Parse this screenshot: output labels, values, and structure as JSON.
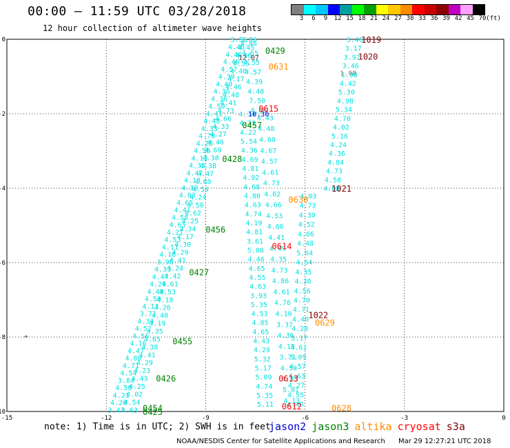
{
  "header": {
    "title": "00:00 — 11:59 UTC 03/28/2018",
    "subtitle": "12 hour collection of altimeter wave heights"
  },
  "legend": {
    "colors": [
      "#808080",
      "#00ffff",
      "#00c8ff",
      "#0000ff",
      "#00a0a0",
      "#00ff00",
      "#00a000",
      "#ffff00",
      "#ffc800",
      "#ff8c00",
      "#ff0000",
      "#c80000",
      "#8b0000",
      "#c000c0",
      "#ffa0ff",
      "#000000"
    ],
    "labels": [
      "3",
      "6",
      "9",
      "12",
      "15",
      "18",
      "21",
      "24",
      "27",
      "30",
      "33",
      "36",
      "39",
      "42",
      "45",
      "70",
      "(ft)"
    ]
  },
  "map": {
    "x_ticks": [
      "-15",
      "-12",
      "-9",
      "-6",
      "-3",
      "0"
    ],
    "y_ticks": [
      "0",
      "-2",
      "-4",
      "-6",
      "-8",
      "-10"
    ],
    "x_range": [
      -15,
      0
    ],
    "y_range": [
      -10,
      0
    ],
    "satellite_colors": {
      "jason2": "#0000c8",
      "jason3": "#008000",
      "altika": "#ff8c00",
      "cryosat": "#ff0000",
      "s3a": "#800000"
    },
    "pass_labels": [
      {
        "text": "1019",
        "sat": "s3a",
        "lon": -4.0,
        "lat": 0.0
      },
      {
        "text": "1020",
        "sat": "s3a",
        "lon": -4.1,
        "lat": -0.45
      },
      {
        "text": "0429",
        "sat": "jason3",
        "lon": -6.9,
        "lat": -0.3
      },
      {
        "text": "0631",
        "sat": "altika",
        "lon": -6.8,
        "lat": -0.72
      },
      {
        "text": "0615",
        "sat": "cryosat",
        "lon": -7.1,
        "lat": -1.85
      },
      {
        "text": "0457",
        "sat": "jason3",
        "lon": -7.6,
        "lat": -2.3
      },
      {
        "text": "0428",
        "sat": "jason3",
        "lon": -8.2,
        "lat": -3.2
      },
      {
        "text": "1021",
        "sat": "s3a",
        "lon": -4.9,
        "lat": -4.0
      },
      {
        "text": "0630",
        "sat": "altika",
        "lon": -6.2,
        "lat": -4.3
      },
      {
        "text": "0456",
        "sat": "jason3",
        "lon": -8.7,
        "lat": -5.1
      },
      {
        "text": "0614",
        "sat": "cryosat",
        "lon": -6.7,
        "lat": -5.55
      },
      {
        "text": "0427",
        "sat": "jason3",
        "lon": -9.2,
        "lat": -6.25
      },
      {
        "text": "1022",
        "sat": "s3a",
        "lon": -5.6,
        "lat": -7.4
      },
      {
        "text": "0629",
        "sat": "altika",
        "lon": -5.4,
        "lat": -7.6
      },
      {
        "text": "0455",
        "sat": "jason3",
        "lon": -9.7,
        "lat": -8.1
      },
      {
        "text": "0426",
        "sat": "jason3",
        "lon": -10.2,
        "lat": -9.1
      },
      {
        "text": "0613",
        "sat": "cryosat",
        "lon": -6.5,
        "lat": -9.1
      },
      {
        "text": "0612",
        "sat": "cryosat",
        "lon": -6.4,
        "lat": -9.85
      },
      {
        "text": "0628",
        "sat": "altika",
        "lon": -4.9,
        "lat": -9.9
      },
      {
        "text": "0454",
        "sat": "jason3",
        "lon": -10.6,
        "lat": -9.9
      },
      {
        "text": "0425",
        "sat": "jason3",
        "lon": -10.6,
        "lat": -10.0
      }
    ],
    "tracks": [
      {
        "name": "track-a",
        "color": "#00e0e0",
        "start": [
          -8.0,
          0.0
        ],
        "end": [
          -11.7,
          -9.95
        ],
        "values": [
          "3.56",
          "4.46",
          "4.46",
          "4.46",
          "4.57",
          "4.39",
          "4.40",
          "4.36",
          "4.36",
          "4.50",
          "4.41",
          "4.48",
          "4.33",
          "4.70",
          "4.28",
          "4.50",
          "4.13",
          "4.33",
          "4.47",
          "4.13",
          "4.32",
          "4.03",
          "4.65",
          "4.41",
          "4.58",
          "4.65",
          "4.21",
          "4.53",
          "4.11",
          "4.18",
          "3.96",
          "4.33",
          "4.47",
          "4.29",
          "4.49",
          "4.50",
          "4.13",
          "3.77",
          "4.34",
          "4.52",
          "4.56",
          "4.16",
          "4.47",
          "4.80",
          "4.71",
          "4.54",
          "3.84",
          "4.58",
          "4.21",
          "4.20",
          "3.47"
        ]
      },
      {
        "name": "track-b",
        "color": "#00e0e0",
        "start": [
          -7.7,
          0.0
        ],
        "end": [
          -11.3,
          -9.95
        ],
        "values": [
          "3.86",
          "4.45",
          "4.56",
          "4.55",
          "4.40",
          "4.17",
          "4.46",
          "4.48",
          "4.41",
          "4.73",
          "4.66",
          "4.33",
          "4.27",
          "4.46",
          "4.69",
          "4.38",
          "4.38",
          "4.47",
          "4.69",
          "4.54",
          "4.24",
          "4.50",
          "4.62",
          "4.25",
          "4.34",
          "4.17",
          "4.30",
          "4.29",
          "4.41",
          "4.24",
          "4.42",
          "4.61",
          "4.53",
          "4.18",
          "4.26",
          "4.40",
          "4.19",
          "4.35",
          "4.65",
          "4.38",
          "4.41",
          "4.29",
          "4.23",
          "4.43",
          "4.25",
          "4.02",
          "4.54",
          "4.63"
        ]
      },
      {
        "name": "track-c",
        "color": "#00e0e0",
        "start": [
          -7.7,
          -0.1
        ],
        "end": [
          -7.4,
          -1.9
        ],
        "values": [
          "4.46",
          "4.65",
          "4.55",
          "4.57",
          "4.39",
          "4.40",
          "7.50",
          "4.86"
        ]
      },
      {
        "name": "track-d",
        "color": "#00e0e0",
        "start": [
          -7.75,
          -2.0
        ],
        "end": [
          -7.2,
          -9.8
        ],
        "values": [
          "4.34",
          "4.23",
          "4.22",
          "5.54",
          "4.36",
          "4.69",
          "4.81",
          "4.92",
          "4.68",
          "4.80",
          "4.63",
          "4.74",
          "4.19",
          "4.81",
          "3.61",
          "5.08",
          "4.46",
          "4.65",
          "4.55",
          "4.63",
          "3.93",
          "5.35",
          "4.53",
          "4.85",
          "4.65",
          "4.43",
          "4.29",
          "5.32",
          "5.17",
          "5.09",
          "4.74",
          "5.35",
          "5.11"
        ]
      },
      {
        "name": "track-e",
        "color": "#00e0e0",
        "start": [
          -7.2,
          -2.1
        ],
        "end": [
          -6.4,
          -9.7
        ],
        "values": [
          "4.43",
          "4.48",
          "4.60",
          "4.67",
          "4.57",
          "4.61",
          "4.73",
          "4.62",
          "4.66",
          "4.53",
          "4.66",
          "4.41",
          "4.49",
          "4.35",
          "4.73",
          "4.86",
          "4.61",
          "4.76",
          "4.10",
          "3.37",
          "4.36",
          "4.15",
          "3.71",
          "4.30",
          "4.33",
          "5.01",
          "4.13"
        ]
      },
      {
        "name": "track-f",
        "color": "#00e0e0",
        "start": [
          -5.9,
          -4.2
        ],
        "end": [
          -6.3,
          -9.8
        ],
        "values": [
          "4.03",
          "4.73",
          "4.30",
          "4.52",
          "4.66",
          "4.48",
          "5.64",
          "4.64",
          "4.35",
          "4.30",
          "4.56",
          "4.70",
          "4.71",
          "4.40",
          "4.28",
          "5.17",
          "4.61",
          "5.09",
          "4.57",
          "4.63",
          "4.27",
          "4.55",
          "4.40"
        ]
      },
      {
        "name": "track-g",
        "color": "#00e0e0",
        "start": [
          -4.5,
          0.0
        ],
        "end": [
          -5.2,
          -4.0
        ],
        "values": [
          "3.46",
          "3.17",
          "3.92",
          "3.46",
          "1.98",
          "4.42",
          "5.30",
          "4.98",
          "5.34",
          "4.70",
          "4.02",
          "5.16",
          "4.24",
          "4.36",
          "4.84",
          "4.73",
          "4.58",
          "4.68"
        ]
      }
    ],
    "extra_labels": [
      {
        "text": "12.07",
        "color": "#404040",
        "lon": -7.7,
        "lat": -0.48
      },
      {
        "text": "10.30",
        "color": "#0000c8",
        "lon": -7.4,
        "lat": -2.0
      },
      {
        "text": "1.98",
        "color": "#808080",
        "lon": -4.7,
        "lat": -0.9
      }
    ]
  },
  "note": "note:  1) Time is in UTC; 2) SWH is in feet",
  "satellites": [
    {
      "label": "jason2",
      "color": "#0000c8"
    },
    {
      "label": "jason3",
      "color": "#008000"
    },
    {
      "label": "altika",
      "color": "#ff8c00"
    },
    {
      "label": "cryosat",
      "color": "#ff0000"
    },
    {
      "label": "s3a",
      "color": "#800000"
    }
  ],
  "footer": {
    "center": "NOAA/NESDIS Center for Satellite Applications and Research",
    "right": "Mar 29 12:27:21 UTC 2018"
  }
}
